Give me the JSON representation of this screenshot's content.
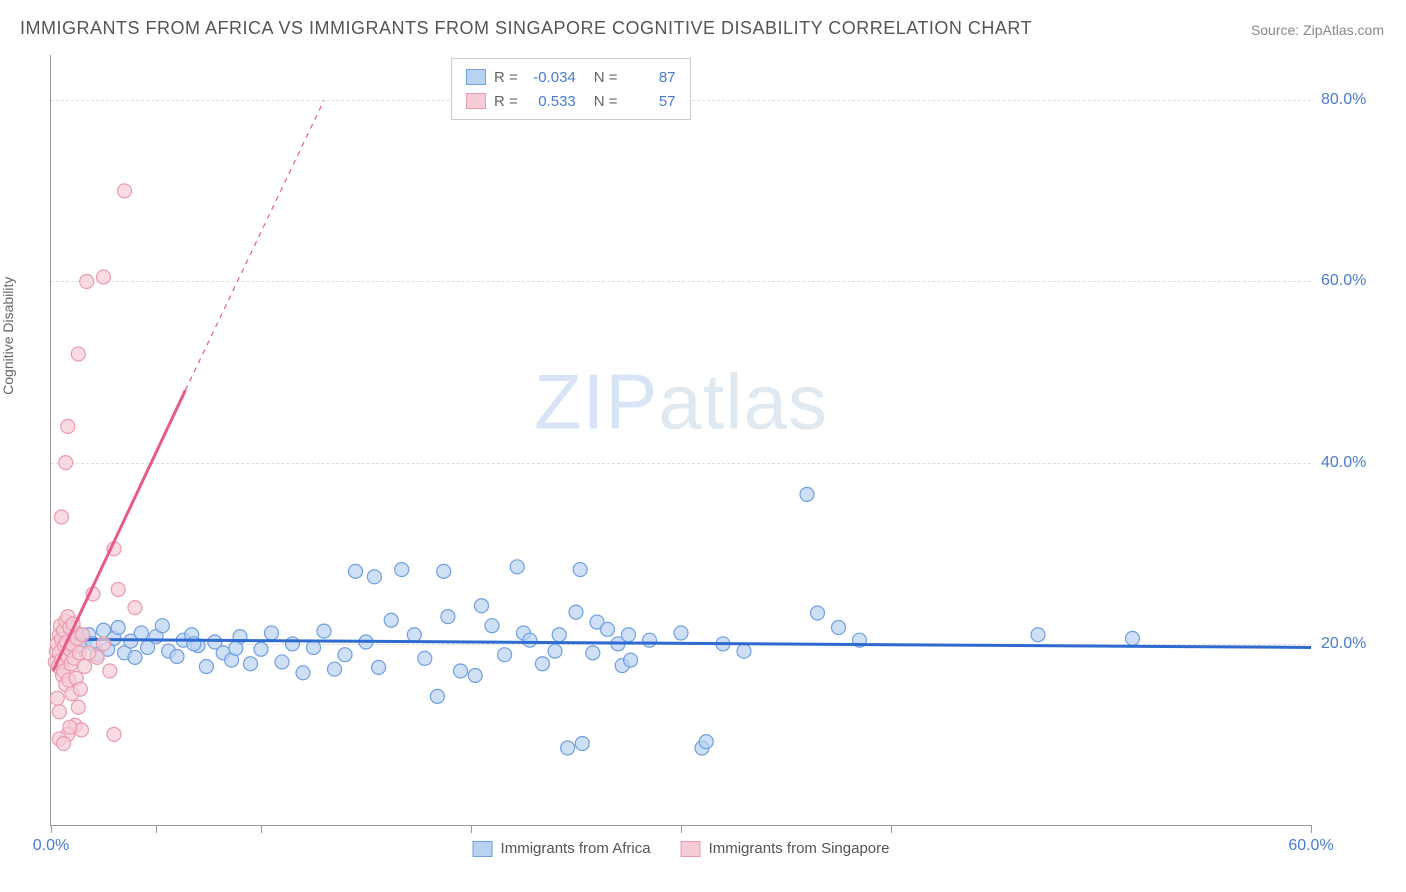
{
  "title": "IMMIGRANTS FROM AFRICA VS IMMIGRANTS FROM SINGAPORE COGNITIVE DISABILITY CORRELATION CHART",
  "source": "Source: ZipAtlas.com",
  "y_axis_label": "Cognitive Disability",
  "watermark": {
    "bold": "ZIP",
    "thin": "atlas"
  },
  "chart": {
    "type": "scatter",
    "xlim": [
      0,
      60
    ],
    "ylim": [
      0,
      85
    ],
    "yticks": [
      20,
      40,
      60,
      80
    ],
    "ytick_labels": [
      "20.0%",
      "40.0%",
      "60.0%",
      "80.0%"
    ],
    "xticks": [
      0,
      5,
      10,
      20,
      30,
      40,
      60
    ],
    "xtick_labels_shown": {
      "0": "0.0%",
      "60": "60.0%"
    },
    "background_color": "#ffffff",
    "grid_color": "#dddddd",
    "marker_radius": 7,
    "marker_stroke_width": 1.2,
    "series": [
      {
        "name": "Immigrants from Africa",
        "fill": "#b9d2f2",
        "stroke": "#6fa0e2",
        "R": "-0.034",
        "N": "87",
        "trend": {
          "color": "#2f6ad0",
          "width": 3,
          "x1": 0.2,
          "y1": 20.5,
          "x2": 60,
          "y2": 19.6
        },
        "points": [
          [
            0.6,
            20.2
          ],
          [
            0.8,
            19.5
          ],
          [
            1.0,
            20.8
          ],
          [
            1.2,
            21.2
          ],
          [
            1.4,
            19.8
          ],
          [
            1.6,
            20.4
          ],
          [
            1.8,
            21.0
          ],
          [
            2.0,
            20.0
          ],
          [
            2.2,
            18.8
          ],
          [
            2.5,
            21.5
          ],
          [
            2.7,
            19.4
          ],
          [
            3.0,
            20.6
          ],
          [
            3.2,
            21.8
          ],
          [
            3.5,
            19.0
          ],
          [
            3.8,
            20.3
          ],
          [
            4.0,
            18.5
          ],
          [
            4.3,
            21.2
          ],
          [
            4.6,
            19.6
          ],
          [
            5.0,
            20.8
          ],
          [
            5.3,
            22.0
          ],
          [
            5.6,
            19.2
          ],
          [
            6.0,
            18.6
          ],
          [
            6.3,
            20.4
          ],
          [
            6.7,
            21.0
          ],
          [
            7.0,
            19.8
          ],
          [
            7.4,
            17.5
          ],
          [
            7.8,
            20.2
          ],
          [
            8.2,
            19.0
          ],
          [
            8.6,
            18.2
          ],
          [
            9.0,
            20.8
          ],
          [
            9.5,
            17.8
          ],
          [
            10.0,
            19.4
          ],
          [
            10.5,
            21.2
          ],
          [
            11.0,
            18.0
          ],
          [
            11.5,
            20.0
          ],
          [
            12.0,
            16.8
          ],
          [
            12.5,
            19.6
          ],
          [
            13.0,
            21.4
          ],
          [
            13.5,
            17.2
          ],
          [
            14.0,
            18.8
          ],
          [
            14.5,
            28.0
          ],
          [
            15.0,
            20.2
          ],
          [
            15.4,
            27.4
          ],
          [
            15.6,
            17.4
          ],
          [
            16.2,
            22.6
          ],
          [
            16.7,
            28.2
          ],
          [
            17.3,
            21.0
          ],
          [
            17.8,
            18.4
          ],
          [
            18.4,
            14.2
          ],
          [
            18.9,
            23.0
          ],
          [
            18.7,
            28.0
          ],
          [
            19.5,
            17.0
          ],
          [
            20.2,
            16.5
          ],
          [
            20.5,
            24.2
          ],
          [
            21.0,
            22.0
          ],
          [
            21.6,
            18.8
          ],
          [
            22.2,
            28.5
          ],
          [
            22.5,
            21.2
          ],
          [
            22.8,
            20.4
          ],
          [
            23.4,
            17.8
          ],
          [
            24.0,
            19.2
          ],
          [
            24.2,
            21.0
          ],
          [
            24.6,
            8.5
          ],
          [
            25.0,
            23.5
          ],
          [
            25.2,
            28.2
          ],
          [
            25.3,
            9.0
          ],
          [
            25.8,
            19.0
          ],
          [
            26.0,
            22.4
          ],
          [
            26.5,
            21.6
          ],
          [
            27.0,
            20.0
          ],
          [
            27.2,
            17.6
          ],
          [
            27.6,
            18.2
          ],
          [
            27.5,
            21.0
          ],
          [
            28.5,
            20.4
          ],
          [
            30.0,
            21.2
          ],
          [
            31.0,
            8.5
          ],
          [
            31.2,
            9.2
          ],
          [
            32.0,
            20.0
          ],
          [
            33.0,
            19.2
          ],
          [
            36.0,
            36.5
          ],
          [
            36.5,
            23.4
          ],
          [
            37.5,
            21.8
          ],
          [
            38.5,
            20.4
          ],
          [
            47.0,
            21.0
          ],
          [
            51.5,
            20.6
          ],
          [
            6.8,
            20.0
          ],
          [
            8.8,
            19.5
          ]
        ]
      },
      {
        "name": "Immigrants from Singapore",
        "fill": "#f6cdd6",
        "stroke": "#ea9bb0",
        "R": "0.533",
        "N": "57",
        "trend": {
          "color": "#e75a8a",
          "width": 3,
          "x1": 0.1,
          "y1": 17.0,
          "x2": 6.4,
          "y2": 48.0,
          "dash_after_x": 6.4,
          "dash_to_x": 13.0,
          "dash_to_y": 80.0
        },
        "points": [
          [
            0.2,
            18.0
          ],
          [
            0.25,
            19.2
          ],
          [
            0.3,
            20.0
          ],
          [
            0.35,
            17.5
          ],
          [
            0.4,
            21.0
          ],
          [
            0.4,
            19.0
          ],
          [
            0.45,
            22.0
          ],
          [
            0.5,
            18.2
          ],
          [
            0.5,
            20.5
          ],
          [
            0.55,
            16.5
          ],
          [
            0.6,
            21.5
          ],
          [
            0.6,
            17.0
          ],
          [
            0.65,
            19.8
          ],
          [
            0.7,
            22.5
          ],
          [
            0.7,
            15.5
          ],
          [
            0.75,
            20.2
          ],
          [
            0.8,
            18.6
          ],
          [
            0.8,
            23.0
          ],
          [
            0.85,
            16.0
          ],
          [
            0.9,
            19.4
          ],
          [
            0.9,
            21.8
          ],
          [
            0.95,
            17.8
          ],
          [
            1.0,
            20.0
          ],
          [
            1.0,
            14.5
          ],
          [
            1.05,
            22.2
          ],
          [
            1.1,
            18.4
          ],
          [
            1.15,
            11.0
          ],
          [
            1.2,
            16.2
          ],
          [
            1.25,
            20.6
          ],
          [
            1.3,
            13.0
          ],
          [
            1.35,
            19.0
          ],
          [
            1.4,
            15.0
          ],
          [
            1.45,
            10.5
          ],
          [
            1.5,
            21.0
          ],
          [
            1.6,
            17.5
          ],
          [
            0.3,
            14.0
          ],
          [
            0.4,
            12.5
          ],
          [
            0.8,
            10.0
          ],
          [
            0.9,
            10.8
          ],
          [
            0.5,
            34.0
          ],
          [
            0.7,
            40.0
          ],
          [
            0.8,
            44.0
          ],
          [
            1.3,
            52.0
          ],
          [
            1.7,
            60.0
          ],
          [
            2.0,
            25.5
          ],
          [
            2.5,
            60.5
          ],
          [
            3.0,
            30.5
          ],
          [
            3.2,
            26.0
          ],
          [
            3.5,
            70.0
          ],
          [
            4.0,
            24.0
          ],
          [
            3.0,
            10.0
          ],
          [
            2.2,
            18.5
          ],
          [
            2.5,
            20.0
          ],
          [
            2.8,
            17.0
          ],
          [
            1.8,
            19.0
          ],
          [
            0.4,
            9.5
          ],
          [
            0.6,
            9.0
          ]
        ]
      }
    ]
  },
  "legend": {
    "items": [
      {
        "label": "Immigrants from Africa",
        "fill": "#b9d2f2",
        "stroke": "#6fa0e2"
      },
      {
        "label": "Immigrants from Singapore",
        "fill": "#f6cdd6",
        "stroke": "#ea9bb0"
      }
    ]
  }
}
